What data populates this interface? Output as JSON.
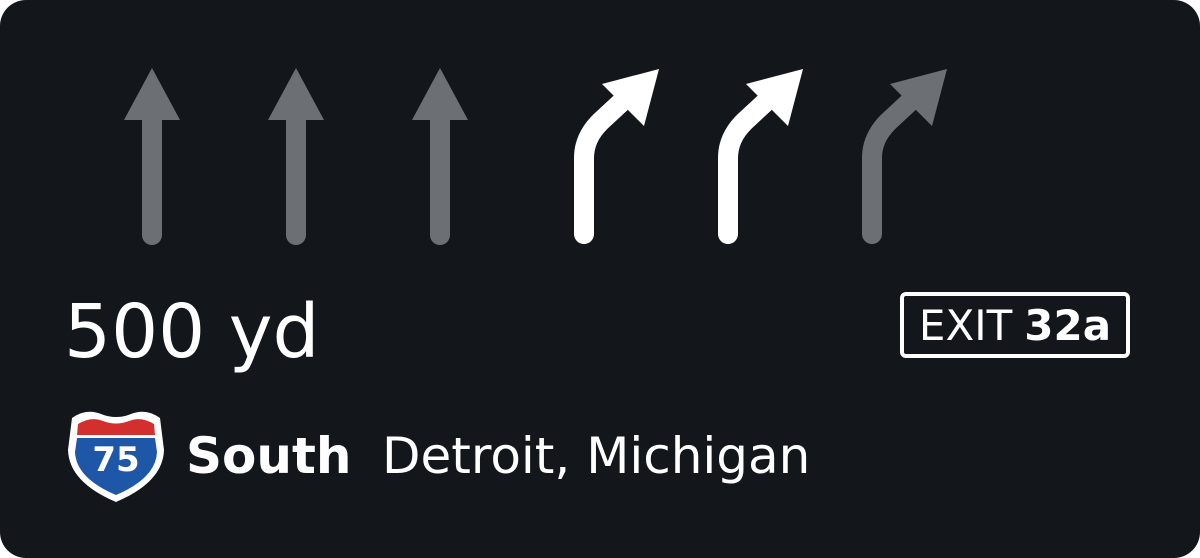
{
  "lanes": [
    {
      "direction": "straight",
      "recommended": false
    },
    {
      "direction": "straight",
      "recommended": false
    },
    {
      "direction": "straight",
      "recommended": false
    },
    {
      "direction": "slight-right",
      "recommended": true
    },
    {
      "direction": "slight-right",
      "recommended": true
    },
    {
      "direction": "slight-right",
      "recommended": false
    }
  ],
  "maneuver": {
    "distance": "500 yd",
    "exit_label": "EXIT",
    "exit_number": "32a"
  },
  "route": {
    "shield_number": "75",
    "direction": "South",
    "destination": "Detroit, Michigan"
  },
  "colors": {
    "background": "#13171c",
    "active_arrow": "#ffffff",
    "inactive_arrow": "#6c7074",
    "shield_red": "#d32f2f",
    "shield_blue": "#1f57a8"
  },
  "icons": {
    "straight": "arrow-straight-icon",
    "slight-right": "arrow-slight-right-icon",
    "shield": "interstate-shield-icon"
  }
}
